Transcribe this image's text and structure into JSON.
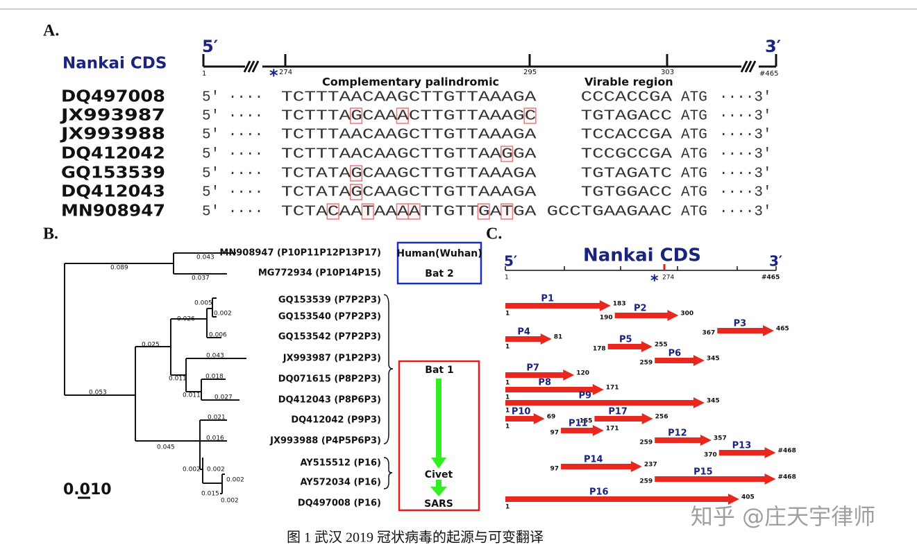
{
  "panel_a": {
    "label": "A.",
    "title": "Nankai CDS",
    "five_prime": "5′",
    "three_prime": "3′",
    "ruler_labels": [
      "1",
      "274",
      "295",
      "303",
      "#465"
    ],
    "star": "*",
    "region_labels": [
      "Complementary palindromic",
      "Virable region"
    ],
    "rows": [
      {
        "name": "DQ497008",
        "prefix": "5′ ····",
        "sequence": "TCTTTAACAAGCTTGTTAAAGA",
        "highlights": [],
        "variable": "CCCACCGA",
        "codon": "ATG",
        "suffix": "····3′"
      },
      {
        "name": "JX993987",
        "prefix": "5′ ····",
        "sequence": "TCTTTAGCAAACTTGTTAAAGC",
        "highlights": [
          6,
          10,
          21
        ],
        "variable": "TGTAGACC",
        "codon": "ATG",
        "suffix": "····3′"
      },
      {
        "name": "JX993988",
        "prefix": "5′ ····",
        "sequence": "TCTTTAACAAGCTTGTTAAAGA",
        "highlights": [],
        "variable": "TCCACCGA",
        "codon": "ATG",
        "suffix": "····3′"
      },
      {
        "name": "DQ412042",
        "prefix": "5′ ····",
        "sequence": "TCTTTAACAAGCTTGTTAAGGA",
        "highlights": [
          19
        ],
        "variable": "TCCGCCGA",
        "codon": "ATG",
        "suffix": "····3′"
      },
      {
        "name": "GQ153539",
        "prefix": "5′ ····",
        "sequence": "TCTATAGCAAGCTTGTTAAAGA",
        "highlights": [
          6
        ],
        "variable": "TGTAGATC",
        "codon": "ATG",
        "suffix": "····3′"
      },
      {
        "name": "DQ412043",
        "prefix": "5′ ····",
        "sequence": "TCTATAGCAAGCTTGTTAAAGA",
        "highlights": [
          6
        ],
        "variable": "TGTGGACC",
        "codon": "ATG",
        "suffix": "····3′"
      },
      {
        "name": "MN908947",
        "prefix": "5′ ····",
        "sequence": "TCTACAATAAAATTGTTGATGA",
        "highlights": [
          4,
          7,
          10,
          11,
          17,
          19
        ],
        "variable": "GCCTGAAGAAC",
        "codon": "ATG",
        "suffix": "····3′"
      }
    ]
  },
  "panel_b": {
    "label": "B.",
    "leaves": [
      "MN908947 (P10P11P12P13P17)",
      "MG772934 (P10P14P15)",
      "GQ153539 (P7P2P3)",
      "GQ153540 (P7P2P3)",
      "GQ153542 (P7P2P3)",
      "JX993987 (P1P2P3)",
      "DQ071615 (P8P2P3)",
      "DQ412043 (P8P6P3)",
      "DQ412042 (P9P3)",
      "JX993988 (P4P5P6P3)",
      "AY515512 (P16)",
      "AY572034 (P16)",
      "DQ497008 (P16)"
    ],
    "branch_labels": [
      "0.043",
      "0.089",
      "0.037",
      "0.005",
      "0.002",
      "0.026",
      "0.006",
      "0.025",
      "0.043",
      "0.011",
      "0.018",
      "0.011",
      "0.027",
      "0.053",
      "0.021",
      "0.016",
      "0.045",
      "0.002",
      "0.002",
      "0.002",
      "0.015",
      "0.002"
    ],
    "scale": "0.010",
    "hosts": [
      "Human(Wuhan)",
      "Bat 2",
      "Bat 1",
      "Civet",
      "SARS"
    ]
  },
  "panel_c": {
    "label": "C.",
    "title": "Nankai CDS",
    "five_prime": "5′",
    "three_prime": "3′",
    "ruler_labels": [
      "1",
      "274",
      "#465"
    ],
    "star": "*",
    "peptides": [
      {
        "name": "P1",
        "start": 1,
        "end": 183
      },
      {
        "name": "P2",
        "start": 190,
        "end": 300
      },
      {
        "name": "P3",
        "start": 367,
        "end": 465
      },
      {
        "name": "P4",
        "start": 1,
        "end": 81
      },
      {
        "name": "P5",
        "start": 178,
        "end": 255
      },
      {
        "name": "P6",
        "start": 259,
        "end": 345
      },
      {
        "name": "P7",
        "start": 1,
        "end": 120
      },
      {
        "name": "P8",
        "start": 1,
        "end": 171
      },
      {
        "name": "P9",
        "start": 1,
        "end": 345
      },
      {
        "name": "P10",
        "start": 1,
        "end": 69
      },
      {
        "name": "P17",
        "start": 155,
        "end": 256
      },
      {
        "name": "P11",
        "start": 97,
        "end": 171
      },
      {
        "name": "P12",
        "start": 259,
        "end": 357
      },
      {
        "name": "P13",
        "start": 370,
        "end": {
          "value": 468,
          "label": "#468"
        }
      },
      {
        "name": "P14",
        "start": 97,
        "end": 237
      },
      {
        "name": "P15",
        "start": 259,
        "end": {
          "value": 468,
          "label": "#468"
        }
      },
      {
        "name": "P16",
        "start": 1,
        "end": 405
      }
    ]
  },
  "caption": "图 1  武汉 2019 冠状病毒的起源与可变翻译",
  "watermark": "知乎 @庄天宇律师"
}
